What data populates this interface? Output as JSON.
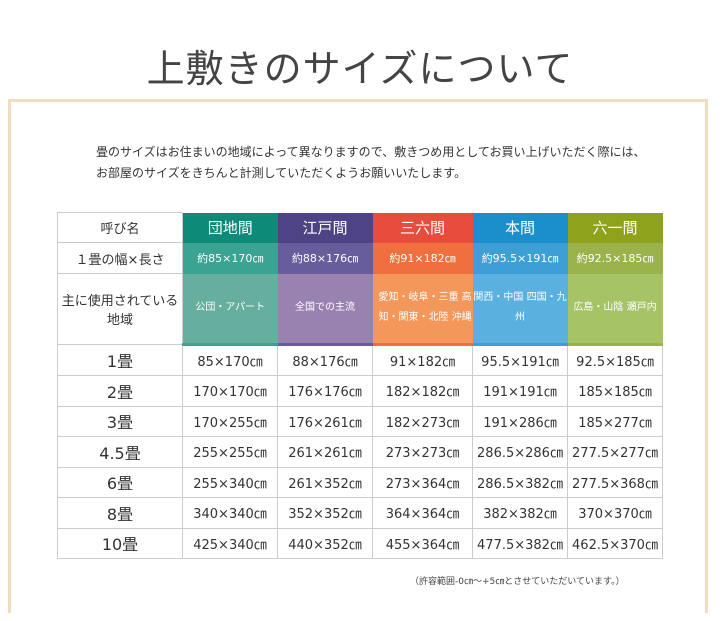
{
  "title": "上敷きのサイズについて",
  "intro": [
    "畳のサイズはお住まいの地域によって異なりますので、敷きつめ用としてお買い上げいただく際には、",
    "お部屋のサイズをきちんと計測していただくようお願いいたします。"
  ],
  "table": {
    "row_labels": {
      "name": "呼び名",
      "size": "１畳の幅×長さ",
      "region": "主に使用されている地域"
    },
    "columns": [
      {
        "name": "団地間",
        "size": "約85×170㎝",
        "region": "公団・アパート",
        "colors": [
          "#0e8a78",
          "#3aa391",
          "#66ae9e"
        ]
      },
      {
        "name": "江戸間",
        "size": "約88×176㎝",
        "region": "全国での主流",
        "colors": [
          "#4e4385",
          "#675d9c",
          "#9982b0"
        ]
      },
      {
        "name": "三六間",
        "size": "約91×182㎝",
        "region": "愛知・岐阜・三重 高知・関東・北陸 沖縄",
        "colors": [
          "#e84c3d",
          "#ef6f3e",
          "#f3975a"
        ]
      },
      {
        "name": "本間",
        "size": "約95.5×191㎝",
        "region": "関西・中国 四国・九州",
        "colors": [
          "#1a8fcb",
          "#3d9fd5",
          "#5ab0de"
        ]
      },
      {
        "name": "六一間",
        "size": "約92.5×185㎝",
        "region": "広島・山陰 瀬戸内",
        "colors": [
          "#8ea21c",
          "#9ab24a",
          "#a6c466"
        ]
      }
    ],
    "rows": [
      {
        "label": "1畳",
        "values": [
          "85×170㎝",
          "88×176㎝",
          "91×182㎝",
          "95.5×191㎝",
          "92.5×185㎝"
        ]
      },
      {
        "label": "2畳",
        "values": [
          "170×170㎝",
          "176×176㎝",
          "182×182㎝",
          "191×191㎝",
          "185×185㎝"
        ]
      },
      {
        "label": "3畳",
        "values": [
          "170×255㎝",
          "176×261㎝",
          "182×273㎝",
          "191×286㎝",
          "185×277㎝"
        ]
      },
      {
        "label": "4.5畳",
        "values": [
          "255×255㎝",
          "261×261㎝",
          "273×273㎝",
          "286.5×286㎝",
          "277.5×277㎝"
        ]
      },
      {
        "label": "6畳",
        "values": [
          "255×340㎝",
          "261×352㎝",
          "273×364㎝",
          "286.5×382㎝",
          "277.5×368㎝"
        ]
      },
      {
        "label": "8畳",
        "values": [
          "340×340㎝",
          "352×352㎝",
          "364×364㎝",
          "382×382㎝",
          "370×370㎝"
        ]
      },
      {
        "label": "10畳",
        "values": [
          "425×340㎝",
          "440×352㎝",
          "455×364㎝",
          "477.5×382㎝",
          "462.5×370㎝"
        ]
      }
    ]
  },
  "note": "（許容範囲-0㎝～+5㎝とさせていただいています。）"
}
